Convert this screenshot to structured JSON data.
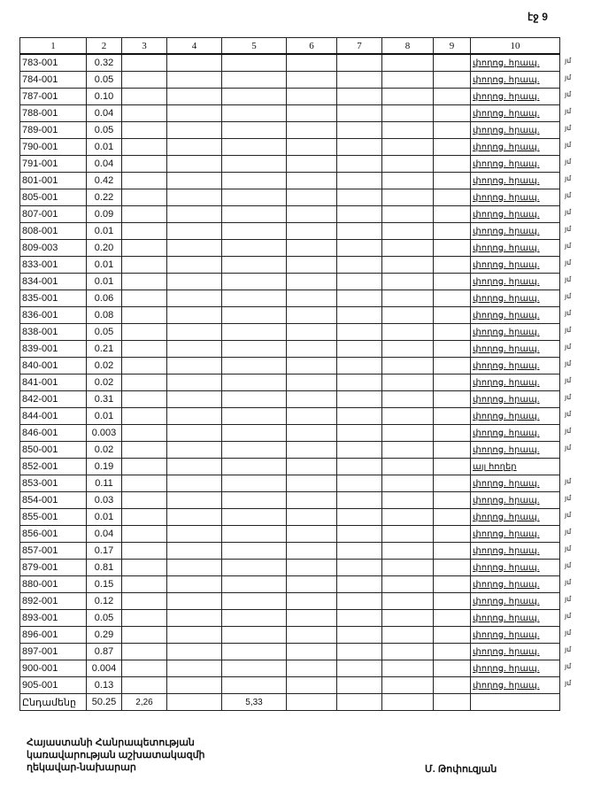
{
  "page_label": "էջ 9",
  "table": {
    "headers": [
      "1",
      "2",
      "3",
      "4",
      "5",
      "6",
      "7",
      "8",
      "9",
      "10"
    ],
    "rows": [
      {
        "id": "783-001",
        "area": "0.32",
        "type": "փողոց. հրապ.",
        "mark": "յմ"
      },
      {
        "id": "784-001",
        "area": "0.05",
        "type": "փողոց. հրապ.",
        "mark": "յմ"
      },
      {
        "id": "787-001",
        "area": "0.10",
        "type": "փողոց. հրապ.",
        "mark": "յմ"
      },
      {
        "id": "788-001",
        "area": "0.04",
        "type": "փողոց. հրապ.",
        "mark": "յմ"
      },
      {
        "id": "789-001",
        "area": "0.05",
        "type": "փողոց. հրապ.",
        "mark": "յմ"
      },
      {
        "id": "790-001",
        "area": "0.01",
        "type": "փողոց. հրապ.",
        "mark": "յմ"
      },
      {
        "id": "791-001",
        "area": "0.04",
        "type": "փողոց. հրապ.",
        "mark": "յմ"
      },
      {
        "id": "801-001",
        "area": "0.42",
        "type": "փողոց. հրապ.",
        "mark": "յմ"
      },
      {
        "id": "805-001",
        "area": "0.22",
        "type": "փողոց. հրապ.",
        "mark": "յմ"
      },
      {
        "id": "807-001",
        "area": "0.09",
        "type": "փողոց. հրապ.",
        "mark": "յմ"
      },
      {
        "id": "808-001",
        "area": "0.01",
        "type": "փողոց. հրապ.",
        "mark": "յմ"
      },
      {
        "id": "809-003",
        "area": "0.20",
        "type": "փողոց. հրապ.",
        "mark": "յմ"
      },
      {
        "id": "833-001",
        "area": "0.01",
        "type": "փողոց. հրապ.",
        "mark": "յմ"
      },
      {
        "id": "834-001",
        "area": "0.01",
        "type": "փողոց. հրապ.",
        "mark": "յմ"
      },
      {
        "id": "835-001",
        "area": "0.06",
        "type": "փողոց. հրապ.",
        "mark": "յմ"
      },
      {
        "id": "836-001",
        "area": "0.08",
        "type": "փողոց. հրապ.",
        "mark": "յմ"
      },
      {
        "id": "838-001",
        "area": "0.05",
        "type": "փողոց. հրապ.",
        "mark": "յմ"
      },
      {
        "id": "839-001",
        "area": "0.21",
        "type": "փողոց. հրապ.",
        "mark": "յմ"
      },
      {
        "id": "840-001",
        "area": "0.02",
        "type": "փողոց. հրապ.",
        "mark": "յմ"
      },
      {
        "id": "841-001",
        "area": "0.02",
        "type": "փողոց. հրապ.",
        "mark": "յմ"
      },
      {
        "id": "842-001",
        "area": "0.31",
        "type": "փողոց. հրապ.",
        "mark": "յմ"
      },
      {
        "id": "844-001",
        "area": "0.01",
        "type": "փողոց. հրապ.",
        "mark": "յմ"
      },
      {
        "id": "846-001",
        "area": "0.003",
        "type": "փողոց. հրապ.",
        "mark": "յմ"
      },
      {
        "id": "850-001",
        "area": "0.02",
        "type": "փողոց. հրապ.",
        "mark": "յմ"
      },
      {
        "id": "852-001",
        "area": "0.19",
        "type": "այլ հողեր",
        "mark": ""
      },
      {
        "id": "853-001",
        "area": "0.11",
        "type": "փողոց. հրապ.",
        "mark": "յմ"
      },
      {
        "id": "854-001",
        "area": "0.03",
        "type": "փողոց. հրապ.",
        "mark": "յմ"
      },
      {
        "id": "855-001",
        "area": "0.01",
        "type": "փողոց. հրապ.",
        "mark": "յմ"
      },
      {
        "id": "856-001",
        "area": "0.04",
        "type": "փողոց. հրապ.",
        "mark": "յմ"
      },
      {
        "id": "857-001",
        "area": "0.17",
        "type": "փողոց. հրապ.",
        "mark": "յմ"
      },
      {
        "id": "879-001",
        "area": "0.81",
        "type": "փողոց. հրապ.",
        "mark": "յմ"
      },
      {
        "id": "880-001",
        "area": "0.15",
        "type": "փողոց. հրապ.",
        "mark": "յմ"
      },
      {
        "id": "892-001",
        "area": "0.12",
        "type": "փողոց. հրապ.",
        "mark": "յմ"
      },
      {
        "id": "893-001",
        "area": "0.05",
        "type": "փողոց. հրապ.",
        "mark": "յմ"
      },
      {
        "id": "896-001",
        "area": "0.29",
        "type": "փողոց. հրապ.",
        "mark": "յմ"
      },
      {
        "id": "897-001",
        "area": "0.87",
        "type": "փողոց. հրապ.",
        "mark": "յմ"
      },
      {
        "id": "900-001",
        "area": "0.004",
        "type": "փողոց. հրապ.",
        "mark": "յմ"
      },
      {
        "id": "905-001",
        "area": "0.13",
        "type": "փողոց. հրապ.",
        "mark": "յմ"
      }
    ],
    "total": {
      "label": "Ընդամենը",
      "col2": "50.25",
      "col3": "2,26",
      "col5": "5,33"
    }
  },
  "footer": {
    "lines": [
      "Հայաստանի Հանրապետության",
      "կառավարության աշխատակազմի",
      "ղեկավար-նախարար"
    ],
    "signer": "Մ. Թոփուզյան"
  }
}
